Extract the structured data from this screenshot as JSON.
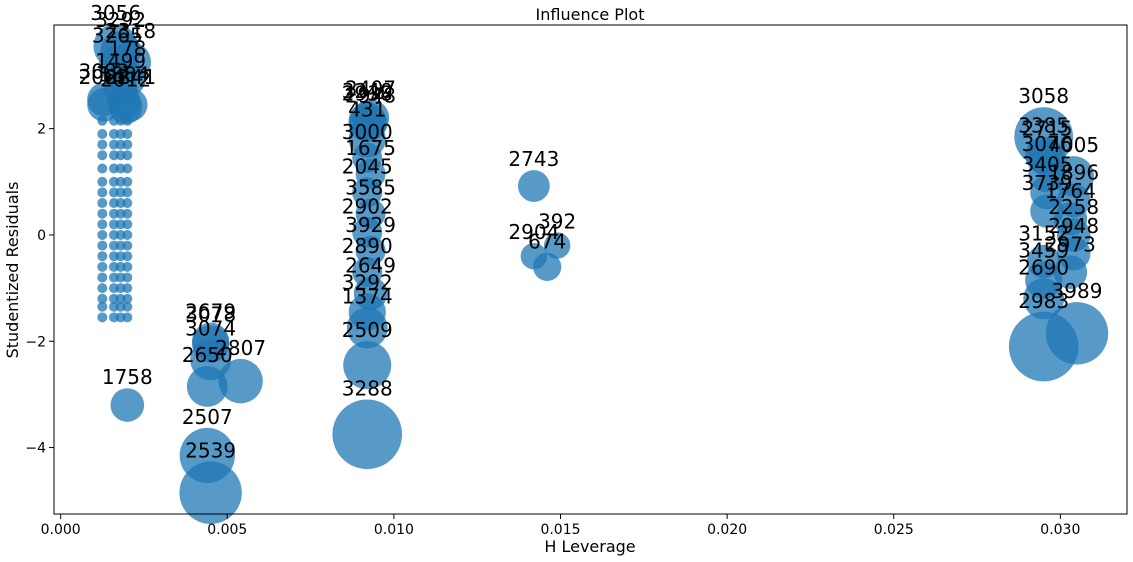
{
  "chart_data": {
    "type": "scatter",
    "title": "Influence Plot",
    "xlabel": "H Leverage",
    "ylabel": "Studentized Residuals",
    "xlim": [
      -0.0002,
      0.032
    ],
    "ylim": [
      -5.25,
      3.95
    ],
    "xticks": [
      "0.000",
      "0.005",
      "0.010",
      "0.015",
      "0.020",
      "0.025",
      "0.030"
    ],
    "xtick_values": [
      0.0,
      0.005,
      0.01,
      0.015,
      0.02,
      0.025,
      0.03
    ],
    "yticks": [
      "−4",
      "−2",
      "0",
      "2"
    ],
    "ytick_values": [
      -4,
      -2,
      0,
      2
    ],
    "marker_color": "#1f77b4",
    "marker_alpha": 0.75,
    "grid": false,
    "bubble_size_meaning": "Cook's distance",
    "column_x": [
      0.00125,
      0.0016,
      0.0018,
      0.002
    ],
    "column_y": [
      2.15,
      1.9,
      1.7,
      1.5,
      1.25,
      1.0,
      0.8,
      0.6,
      0.4,
      0.2,
      0.0,
      -0.2,
      -0.4,
      -0.6,
      -0.8,
      -1.0,
      -1.2,
      -1.35,
      -1.55
    ],
    "points": [
      {
        "id": "3056",
        "x": 0.00165,
        "y": 3.55,
        "s": 0.9
      },
      {
        "id": "3292",
        "x": 0.0018,
        "y": 3.45,
        "s": 0.8
      },
      {
        "id": "2318",
        "x": 0.0021,
        "y": 3.25,
        "s": 0.8
      },
      {
        "id": "3265",
        "x": 0.0017,
        "y": 3.2,
        "s": 0.7
      },
      {
        "id": "178",
        "x": 0.002,
        "y": 2.95,
        "s": 0.7
      },
      {
        "id": "1499",
        "x": 0.0018,
        "y": 2.75,
        "s": 0.6
      },
      {
        "id": "3082",
        "x": 0.0013,
        "y": 2.55,
        "s": 0.6
      },
      {
        "id": "1804",
        "x": 0.0019,
        "y": 2.5,
        "s": 0.6
      },
      {
        "id": "2841",
        "x": 0.0021,
        "y": 2.45,
        "s": 0.6
      },
      {
        "id": "2012",
        "x": 0.00195,
        "y": 2.4,
        "s": 0.6
      },
      {
        "id": "2062",
        "x": 0.0013,
        "y": 2.45,
        "s": 0.6
      },
      {
        "id": "3240",
        "x": 0.0092,
        "y": 2.15,
        "s": 0.7
      },
      {
        "id": "2407",
        "x": 0.0093,
        "y": 2.2,
        "s": 0.7
      },
      {
        "id": "2938",
        "x": 0.0092,
        "y": 2.1,
        "s": 0.7
      },
      {
        "id": "2948",
        "x": 0.0093,
        "y": 2.1,
        "s": 0.6
      },
      {
        "id": "431",
        "x": 0.0092,
        "y": 1.8,
        "s": 0.7
      },
      {
        "id": "3000",
        "x": 0.0092,
        "y": 1.45,
        "s": 0.5
      },
      {
        "id": "1675",
        "x": 0.0093,
        "y": 1.15,
        "s": 0.5
      },
      {
        "id": "2045",
        "x": 0.0092,
        "y": 0.8,
        "s": 0.5
      },
      {
        "id": "3585",
        "x": 0.0093,
        "y": 0.4,
        "s": 0.5
      },
      {
        "id": "2902",
        "x": 0.0092,
        "y": 0.05,
        "s": 0.5
      },
      {
        "id": "3929",
        "x": 0.0093,
        "y": -0.3,
        "s": 0.5
      },
      {
        "id": "2890",
        "x": 0.0092,
        "y": -0.7,
        "s": 0.5
      },
      {
        "id": "2649",
        "x": 0.0093,
        "y": -1.1,
        "s": 0.6
      },
      {
        "id": "3292",
        "x": 0.0092,
        "y": -1.45,
        "s": 0.7
      },
      {
        "id": "1374",
        "x": 0.0092,
        "y": -1.75,
        "s": 0.8
      },
      {
        "id": "2509",
        "x": 0.0092,
        "y": -2.45,
        "s": 1.0
      },
      {
        "id": "3288",
        "x": 0.0092,
        "y": -3.75,
        "s": 1.6
      },
      {
        "id": "2743",
        "x": 0.0142,
        "y": 0.92,
        "s": 0.55
      },
      {
        "id": "392",
        "x": 0.0149,
        "y": -0.2,
        "s": 0.4
      },
      {
        "id": "2904",
        "x": 0.0142,
        "y": -0.4,
        "s": 0.4
      },
      {
        "id": "674",
        "x": 0.0146,
        "y": -0.6,
        "s": 0.45
      },
      {
        "id": "3078",
        "x": 0.0045,
        "y": -2.05,
        "s": 0.7
      },
      {
        "id": "2679",
        "x": 0.0045,
        "y": -2.0,
        "s": 0.7
      },
      {
        "id": "3074",
        "x": 0.0045,
        "y": -2.35,
        "s": 0.8
      },
      {
        "id": "2650",
        "x": 0.0044,
        "y": -2.85,
        "s": 0.8
      },
      {
        "id": "2807",
        "x": 0.0054,
        "y": -2.75,
        "s": 0.9
      },
      {
        "id": "2507",
        "x": 0.0044,
        "y": -4.15,
        "s": 1.2
      },
      {
        "id": "2539",
        "x": 0.0045,
        "y": -4.85,
        "s": 1.4
      },
      {
        "id": "1758",
        "x": 0.002,
        "y": -3.2,
        "s": 0.6
      },
      {
        "id": "3058",
        "x": 0.0295,
        "y": 1.85,
        "s": 1.3
      },
      {
        "id": "3385",
        "x": 0.0295,
        "y": 1.5,
        "s": 0.7
      },
      {
        "id": "2715",
        "x": 0.0296,
        "y": 1.45,
        "s": 0.7
      },
      {
        "id": "4005",
        "x": 0.0304,
        "y": 1.1,
        "s": 0.8
      },
      {
        "id": "3076",
        "x": 0.0296,
        "y": 1.15,
        "s": 0.7
      },
      {
        "id": "1896",
        "x": 0.0304,
        "y": 0.65,
        "s": 0.6
      },
      {
        "id": "3405",
        "x": 0.0296,
        "y": 0.8,
        "s": 0.6
      },
      {
        "id": "3739",
        "x": 0.0296,
        "y": 0.45,
        "s": 0.6
      },
      {
        "id": "1764",
        "x": 0.0303,
        "y": 0.3,
        "s": 0.6
      },
      {
        "id": "2258",
        "x": 0.0304,
        "y": 0.0,
        "s": 0.6
      },
      {
        "id": "2948",
        "x": 0.0304,
        "y": -0.35,
        "s": 0.6
      },
      {
        "id": "3152",
        "x": 0.0295,
        "y": -0.5,
        "s": 0.6
      },
      {
        "id": "2973",
        "x": 0.0303,
        "y": -0.7,
        "s": 0.6
      },
      {
        "id": "3459",
        "x": 0.0295,
        "y": -0.85,
        "s": 0.7
      },
      {
        "id": "2690",
        "x": 0.0295,
        "y": -1.2,
        "s": 0.8
      },
      {
        "id": "3989",
        "x": 0.0305,
        "y": -1.85,
        "s": 1.4
      },
      {
        "id": "2983",
        "x": 0.0295,
        "y": -2.1,
        "s": 1.6
      }
    ]
  }
}
